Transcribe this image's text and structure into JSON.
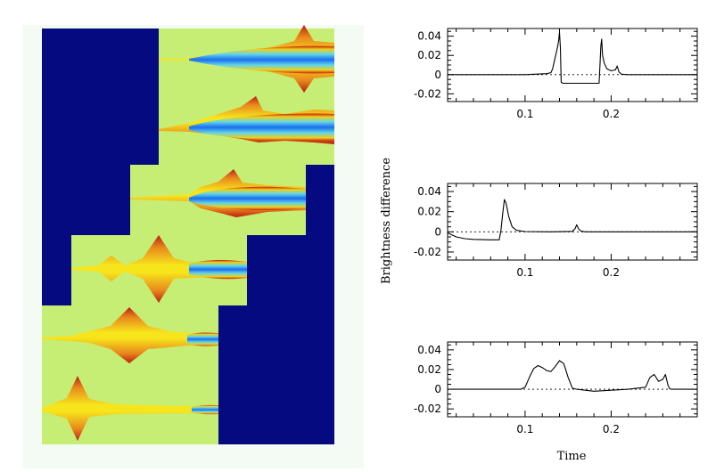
{
  "map_panel": {
    "background_color": "#f4fbf4",
    "mask_color": "#060a80",
    "field_color": "#c6ee74",
    "caustic_colors": [
      "#f7e51c",
      "#e8881c",
      "#b81e12",
      "#5cc8e8",
      "#1a6ef0"
    ]
  },
  "chart_data": [
    {
      "type": "line",
      "title": "",
      "xlabel": "",
      "ylabel": "",
      "xlim": [
        0.01,
        0.3
      ],
      "ylim": [
        -0.028,
        0.048
      ],
      "xticks": [
        0.1,
        0.2
      ],
      "xtick_labels": [
        "0.1",
        "0.2"
      ],
      "yticks": [
        0.04,
        0.02,
        0,
        -0.02
      ],
      "ytick_labels": [
        "0.04",
        "0.02",
        "0",
        "-0.02"
      ],
      "zero_line": "dashed",
      "series": [
        {
          "x": [
            0.01,
            0.1,
            0.125,
            0.13,
            0.132,
            0.134,
            0.136,
            0.138,
            0.139,
            0.14,
            0.141,
            0.142,
            0.144,
            0.15,
            0.16,
            0.17,
            0.18,
            0.186,
            0.187,
            0.188,
            0.189,
            0.19,
            0.192,
            0.195,
            0.2,
            0.205,
            0.207,
            0.209,
            0.212,
            0.22,
            0.3
          ],
          "y": [
            0.0,
            0.0,
            0.001,
            0.002,
            0.006,
            0.014,
            0.022,
            0.03,
            0.036,
            0.044,
            0.028,
            -0.008,
            -0.009,
            -0.009,
            -0.009,
            -0.009,
            -0.009,
            -0.009,
            0.01,
            0.03,
            0.037,
            0.02,
            0.012,
            0.006,
            0.004,
            0.005,
            0.009,
            0.003,
            0.0005,
            0.0,
            0.0
          ]
        }
      ]
    },
    {
      "type": "line",
      "title": "",
      "xlabel": "",
      "ylabel": "Brightness difference",
      "xlim": [
        0.01,
        0.3
      ],
      "ylim": [
        -0.028,
        0.048
      ],
      "xticks": [
        0.1,
        0.2
      ],
      "xtick_labels": [
        "0.1",
        "0.2"
      ],
      "yticks": [
        0.04,
        0.02,
        0,
        -0.02
      ],
      "ytick_labels": [
        "0.04",
        "0.02",
        "0",
        "-0.02"
      ],
      "zero_line": "dashed",
      "series": [
        {
          "x": [
            0.01,
            0.015,
            0.02,
            0.03,
            0.04,
            0.05,
            0.06,
            0.07,
            0.072,
            0.074,
            0.076,
            0.078,
            0.081,
            0.085,
            0.09,
            0.1,
            0.13,
            0.155,
            0.158,
            0.16,
            0.162,
            0.165,
            0.17,
            0.3
          ],
          "y": [
            -0.001,
            -0.003,
            -0.005,
            -0.0068,
            -0.0075,
            -0.0078,
            -0.0079,
            -0.0079,
            0.002,
            0.018,
            0.032,
            0.028,
            0.015,
            0.005,
            0.0015,
            0.0003,
            0.0,
            0.0005,
            0.003,
            0.007,
            0.003,
            0.0006,
            0.0,
            0.0
          ]
        }
      ]
    },
    {
      "type": "line",
      "title": "",
      "xlabel": "Time",
      "ylabel": "",
      "xlim": [
        0.01,
        0.3
      ],
      "ylim": [
        -0.028,
        0.048
      ],
      "xticks": [
        0.1,
        0.2
      ],
      "xtick_labels": [
        "0.1",
        "0.2"
      ],
      "yticks": [
        0.04,
        0.02,
        0,
        -0.02
      ],
      "ytick_labels": [
        "0.04",
        "0.02",
        "0",
        "-0.02"
      ],
      "zero_line": "dashed",
      "series": [
        {
          "x": [
            0.01,
            0.03,
            0.05,
            0.08,
            0.095,
            0.1,
            0.105,
            0.11,
            0.115,
            0.12,
            0.125,
            0.13,
            0.135,
            0.14,
            0.145,
            0.15,
            0.155,
            0.16,
            0.18,
            0.2,
            0.22,
            0.24,
            0.245,
            0.25,
            0.255,
            0.26,
            0.263,
            0.266,
            0.268,
            0.27,
            0.3
          ],
          "y": [
            0.0,
            0.0,
            0.0,
            0.0,
            0.0,
            0.002,
            0.012,
            0.021,
            0.024,
            0.022,
            0.019,
            0.018,
            0.023,
            0.029,
            0.026,
            0.012,
            0.001,
            0.0,
            -0.002,
            -0.001,
            0.0,
            0.002,
            0.012,
            0.015,
            0.008,
            0.01,
            0.015,
            0.004,
            0.0005,
            0.0,
            0.0
          ]
        }
      ]
    }
  ]
}
